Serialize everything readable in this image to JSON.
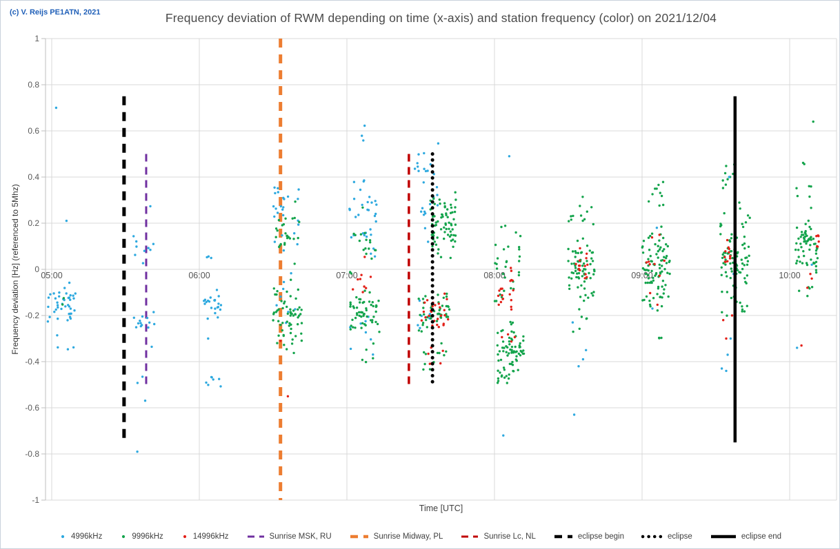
{
  "page": {
    "copyright": "(c) V. Reijs  PE1ATN, 2021"
  },
  "chart_data": {
    "type": "scatter",
    "title": "Frequency deviation of RWM depending on time (x-axis) and station frequency (color) on 2021/12/04",
    "xlabel": "Time [UTC]",
    "ylabel": "Frequency deviation [Hz] (referenced to 5Mhz)",
    "x_axis": {
      "tick_labels": [
        "05:00",
        "06:00",
        "07:00",
        "08:00",
        "09:00",
        "10:00"
      ],
      "tick_hours": [
        5,
        6,
        7,
        8,
        9,
        10
      ],
      "min_hours": 4.958,
      "max_hours": 10.318
    },
    "y_axis": {
      "min": -1,
      "max": 1,
      "step": 0.2,
      "tick_labels": [
        "1",
        "0.8",
        "0.6",
        "0.4",
        "0.2",
        "0",
        "-0.2",
        "-0.4",
        "-0.6",
        "-0.8",
        "-1"
      ]
    },
    "series": [
      {
        "key": "b",
        "name": "4996kHz",
        "color": "#2ea9df"
      },
      {
        "key": "g",
        "name": "9996kHz",
        "color": "#14a44c"
      },
      {
        "key": "r",
        "name": "14996kHz",
        "color": "#e32119"
      }
    ],
    "event_lines": [
      {
        "name": "eclipse begin",
        "t": 5.49,
        "y_from": -0.75,
        "y_to": 0.75,
        "style": "dashed-thick",
        "color": "#000000",
        "width": 5,
        "z": "below"
      },
      {
        "name": "Sunrise MSK, RU",
        "t": 5.64,
        "y_from": -0.5,
        "y_to": 0.5,
        "style": "dashed",
        "color": "#7030a0",
        "width": 3,
        "z": "below"
      },
      {
        "name": "Sunrise Midway, PL",
        "t": 6.55,
        "y_from": -1,
        "y_to": 1,
        "style": "dashed-thick",
        "color": "#ed7d31",
        "width": 5,
        "z": "below"
      },
      {
        "name": "Sunrise Lc, NL",
        "t": 7.42,
        "y_from": -0.5,
        "y_to": 0.5,
        "style": "dashed",
        "color": "#c00000",
        "width": 3.5,
        "z": "below"
      },
      {
        "name": "eclipse",
        "t": 7.58,
        "y_from": -0.5,
        "y_to": 0.5,
        "style": "dotted",
        "color": "#000000",
        "width": 5,
        "z": "above"
      },
      {
        "name": "eclipse end",
        "t": 9.63,
        "y_from": -0.75,
        "y_to": 0.75,
        "style": "solid",
        "color": "#000000",
        "width": 4.5,
        "z": "above"
      }
    ],
    "clusters": [
      {
        "s": "b",
        "t": [
          4.97,
          5.17
        ],
        "y": [
          -0.04,
          -0.25
        ],
        "n": 40
      },
      {
        "s": "b",
        "t": [
          5.0,
          5.15
        ],
        "y": [
          -0.28,
          -0.37
        ],
        "n": 4
      },
      {
        "s": "g",
        "t": [
          5.05,
          5.09
        ],
        "y": [
          -0.09,
          -0.22
        ],
        "n": 2
      },
      {
        "s": "b",
        "t": [
          5.55,
          5.7
        ],
        "y": [
          0.28,
          -0.1
        ],
        "n": 10
      },
      {
        "s": "b",
        "t": [
          5.55,
          5.7
        ],
        "y": [
          -0.1,
          -0.36
        ],
        "n": 14
      },
      {
        "s": "b",
        "t": [
          5.56,
          5.64
        ],
        "y": [
          -0.44,
          -0.66
        ],
        "n": 3
      },
      {
        "s": "b",
        "t": [
          6.05,
          6.1
        ],
        "y": [
          0.07,
          0.04
        ],
        "n": 3
      },
      {
        "s": "b",
        "t": [
          6.02,
          6.15
        ],
        "y": [
          -0.07,
          -0.23
        ],
        "n": 22
      },
      {
        "s": "b",
        "t": [
          6.06,
          6.06
        ],
        "y": [
          -0.3,
          -0.3
        ],
        "n": 1
      },
      {
        "s": "b",
        "t": [
          6.03,
          6.15
        ],
        "y": [
          -0.42,
          -0.51
        ],
        "n": 7
      },
      {
        "s": "b",
        "t": [
          6.5,
          6.68
        ],
        "y": [
          0.4,
          0.06
        ],
        "n": 24
      },
      {
        "s": "b",
        "t": [
          6.52,
          6.66
        ],
        "y": [
          0.02,
          -0.3
        ],
        "n": 8
      },
      {
        "s": "g",
        "t": [
          6.5,
          6.68
        ],
        "y": [
          0.3,
          -0.02
        ],
        "n": 25
      },
      {
        "s": "g",
        "t": [
          6.5,
          6.7
        ],
        "y": [
          -0.04,
          -0.38
        ],
        "n": 60
      },
      {
        "s": "b",
        "t": [
          7.08,
          7.14
        ],
        "y": [
          0.67,
          0.55
        ],
        "n": 3
      },
      {
        "s": "b",
        "t": [
          7.0,
          7.2
        ],
        "y": [
          0.45,
          0.0
        ],
        "n": 32
      },
      {
        "s": "b",
        "t": [
          7.02,
          7.18
        ],
        "y": [
          -0.18,
          -0.43
        ],
        "n": 8
      },
      {
        "s": "g",
        "t": [
          7.02,
          7.2
        ],
        "y": [
          0.28,
          -0.05
        ],
        "n": 18
      },
      {
        "s": "g",
        "t": [
          7.02,
          7.22
        ],
        "y": [
          -0.08,
          -0.28
        ],
        "n": 55
      },
      {
        "s": "g",
        "t": [
          7.05,
          7.18
        ],
        "y": [
          -0.3,
          -0.42
        ],
        "n": 5
      },
      {
        "s": "r",
        "t": [
          7.04,
          7.18
        ],
        "y": [
          0.1,
          -0.22
        ],
        "n": 9
      },
      {
        "s": "b",
        "t": [
          7.46,
          7.62
        ],
        "y": [
          0.56,
          0.1
        ],
        "n": 26
      },
      {
        "s": "b",
        "t": [
          7.48,
          7.6
        ],
        "y": [
          -0.12,
          -0.33
        ],
        "n": 7
      },
      {
        "s": "g",
        "t": [
          7.56,
          7.74
        ],
        "y": [
          0.38,
          0.02
        ],
        "n": 70
      },
      {
        "s": "g",
        "t": [
          7.48,
          7.7
        ],
        "y": [
          -0.06,
          -0.28
        ],
        "n": 45
      },
      {
        "s": "g",
        "t": [
          7.5,
          7.68
        ],
        "y": [
          -0.3,
          -0.47
        ],
        "n": 12
      },
      {
        "s": "r",
        "t": [
          7.5,
          7.7
        ],
        "y": [
          -0.1,
          -0.28
        ],
        "n": 26
      },
      {
        "s": "r",
        "t": [
          7.52,
          7.66
        ],
        "y": [
          -0.3,
          -0.45
        ],
        "n": 6
      },
      {
        "s": "g",
        "t": [
          8.0,
          8.18
        ],
        "y": [
          0.28,
          -0.18
        ],
        "n": 30
      },
      {
        "s": "g",
        "t": [
          8.02,
          8.2
        ],
        "y": [
          -0.2,
          -0.5
        ],
        "n": 75
      },
      {
        "s": "r",
        "t": [
          8.02,
          8.06
        ],
        "y": [
          -0.02,
          -0.2
        ],
        "n": 10
      },
      {
        "s": "r",
        "t": [
          8.1,
          8.13
        ],
        "y": [
          0.02,
          -0.2
        ],
        "n": 10
      },
      {
        "s": "r",
        "t": [
          8.04,
          8.14
        ],
        "y": [
          -0.26,
          -0.32
        ],
        "n": 4
      },
      {
        "s": "g",
        "t": [
          8.5,
          8.68
        ],
        "y": [
          0.33,
          0.15
        ],
        "n": 12
      },
      {
        "s": "g",
        "t": [
          8.5,
          8.68
        ],
        "y": [
          0.14,
          -0.14
        ],
        "n": 65
      },
      {
        "s": "g",
        "t": [
          8.52,
          8.64
        ],
        "y": [
          -0.16,
          -0.3
        ],
        "n": 6
      },
      {
        "s": "r",
        "t": [
          8.55,
          8.58
        ],
        "y": [
          0.12,
          -0.1
        ],
        "n": 8
      },
      {
        "s": "r",
        "t": [
          8.61,
          8.63
        ],
        "y": [
          0.1,
          -0.06
        ],
        "n": 7
      },
      {
        "s": "g",
        "t": [
          9.0,
          9.18
        ],
        "y": [
          0.42,
          0.22
        ],
        "n": 10
      },
      {
        "s": "g",
        "t": [
          9.0,
          9.19
        ],
        "y": [
          0.2,
          -0.2
        ],
        "n": 90
      },
      {
        "s": "g",
        "t": [
          9.05,
          9.15
        ],
        "y": [
          -0.25,
          -0.35
        ],
        "n": 3
      },
      {
        "s": "r",
        "t": [
          9.02,
          9.17
        ],
        "y": [
          0.25,
          -0.2
        ],
        "n": 10
      },
      {
        "s": "g",
        "t": [
          9.53,
          9.72
        ],
        "y": [
          0.5,
          0.32
        ],
        "n": 10
      },
      {
        "s": "g",
        "t": [
          9.53,
          9.73
        ],
        "y": [
          0.3,
          -0.25
        ],
        "n": 90
      },
      {
        "s": "r",
        "t": [
          9.56,
          9.6
        ],
        "y": [
          0.14,
          0.0
        ],
        "n": 12
      },
      {
        "s": "g",
        "t": [
          10.06,
          10.1
        ],
        "y": [
          0.48,
          0.44
        ],
        "n": 2
      },
      {
        "s": "g",
        "t": [
          10.04,
          10.18
        ],
        "y": [
          0.4,
          0.25
        ],
        "n": 6
      },
      {
        "s": "g",
        "t": [
          10.04,
          10.2
        ],
        "y": [
          0.22,
          -0.02
        ],
        "n": 60
      },
      {
        "s": "g",
        "t": [
          10.06,
          10.16
        ],
        "y": [
          -0.04,
          -0.12
        ],
        "n": 5
      },
      {
        "s": "r",
        "t": [
          10.18,
          10.2
        ],
        "y": [
          0.16,
          0.07
        ],
        "n": 6
      }
    ],
    "points": [
      [
        "b",
        5.03,
        0.7
      ],
      [
        "b",
        5.1,
        0.21
      ],
      [
        "b",
        5.58,
        -0.79
      ],
      [
        "r",
        6.55,
        -0.31
      ],
      [
        "r",
        6.6,
        -0.55
      ],
      [
        "b",
        8.1,
        0.49
      ],
      [
        "b",
        8.06,
        -0.72
      ],
      [
        "b",
        8.53,
        -0.23
      ],
      [
        "b",
        8.62,
        -0.35
      ],
      [
        "b",
        8.6,
        -0.39
      ],
      [
        "b",
        8.57,
        -0.42
      ],
      [
        "b",
        8.54,
        -0.63
      ],
      [
        "b",
        9.1,
        0.18
      ],
      [
        "b",
        9.07,
        -0.17
      ],
      [
        "b",
        9.59,
        0.4
      ],
      [
        "b",
        9.62,
        -0.02
      ],
      [
        "b",
        9.6,
        -0.3
      ],
      [
        "b",
        9.58,
        -0.37
      ],
      [
        "b",
        9.54,
        -0.43
      ],
      [
        "b",
        9.57,
        -0.44
      ],
      [
        "r",
        9.55,
        -0.22
      ],
      [
        "r",
        9.61,
        -0.2
      ],
      [
        "r",
        9.63,
        -0.33
      ],
      [
        "r",
        9.57,
        -0.3
      ],
      [
        "g",
        10.16,
        0.64
      ],
      [
        "r",
        10.14,
        -0.02
      ],
      [
        "r",
        10.15,
        -0.04
      ],
      [
        "r",
        10.12,
        -0.08
      ],
      [
        "r",
        10.08,
        -0.33
      ],
      [
        "b",
        10.15,
        0.02
      ],
      [
        "b",
        10.05,
        -0.34
      ]
    ]
  },
  "legend": {
    "items": [
      {
        "label": "4996kHz",
        "marker": "dot",
        "color": "#2ea9df"
      },
      {
        "label": "9996kHz",
        "marker": "dot",
        "color": "#14a44c"
      },
      {
        "label": "14996kHz",
        "marker": "dot",
        "color": "#e32119"
      },
      {
        "label": "Sunrise MSK, RU",
        "marker": "dashed",
        "color": "#7030a0"
      },
      {
        "label": "Sunrise Midway, PL",
        "marker": "dashed-thick",
        "color": "#ed7d31"
      },
      {
        "label": "Sunrise Lc, NL",
        "marker": "dashed",
        "color": "#c00000"
      },
      {
        "label": "eclipse begin",
        "marker": "dashed-thick",
        "color": "#000000"
      },
      {
        "label": "eclipse",
        "marker": "dotted",
        "color": "#000000"
      },
      {
        "label": "eclipse end",
        "marker": "solid",
        "color": "#000000"
      }
    ]
  }
}
